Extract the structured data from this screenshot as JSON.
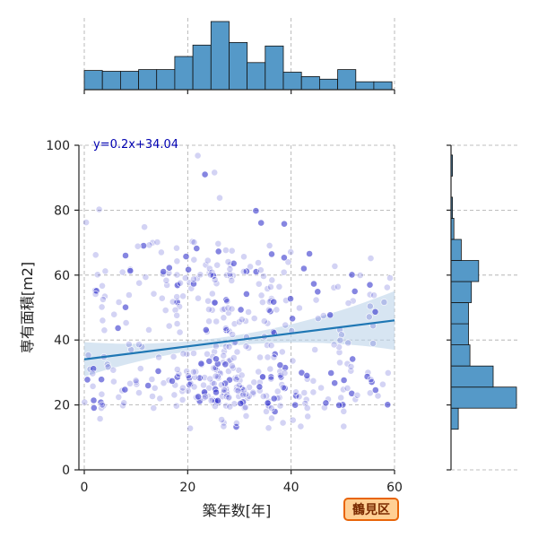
{
  "chart_data": {
    "type": "scatter",
    "xlabel": "築年数[年]",
    "ylabel": "専有面積[m2]",
    "xlim": [
      0,
      60
    ],
    "ylim": [
      0,
      100
    ],
    "x_ticks": [
      "0",
      "20",
      "40",
      "60"
    ],
    "y_ticks": [
      "0",
      "20",
      "40",
      "60",
      "80",
      "100"
    ],
    "grid": true,
    "regression": {
      "slope": 0.2,
      "intercept": 34.04,
      "label": "y=0.2x+34.04"
    },
    "badge": "鶴見区",
    "colors": {
      "points": "#2222c8",
      "regression": "#1f77b4",
      "band": "#bcd4ea",
      "hist_fill": "#5599c8",
      "badge_fill": "#ffcf94",
      "badge_stroke": "#e8650a"
    },
    "x_histogram": {
      "bin_edges": [
        0,
        3.5,
        7,
        10.5,
        14,
        17.5,
        21,
        24.5,
        28,
        31.5,
        35,
        38.5,
        42,
        45.5,
        49,
        52.5,
        56,
        59.5
      ],
      "counts": [
        22,
        21,
        21,
        23,
        23,
        38,
        51,
        78,
        54,
        31,
        50,
        20,
        15,
        12,
        23,
        9,
        9
      ]
    },
    "y_histogram": {
      "bin_edges": [
        6,
        12.5,
        19,
        25.5,
        32,
        38.5,
        45,
        51.5,
        58,
        64.5,
        71,
        77.5,
        84,
        90.5,
        97
      ],
      "counts": [
        0,
        5,
        45,
        29,
        13,
        12,
        12,
        14,
        19,
        7,
        2,
        1,
        0,
        1
      ]
    }
  }
}
